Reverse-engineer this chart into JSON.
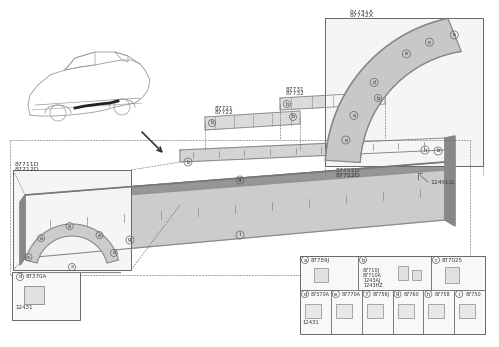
{
  "bg_color": "#ffffff",
  "line_color": "#666666",
  "text_color": "#333333",
  "gray1": "#aaaaaa",
  "gray2": "#888888",
  "gray3": "#cccccc",
  "part_labels_top": [
    "87741X",
    "87742X"
  ],
  "part_labels_mid": [
    "87751D",
    "87752D"
  ],
  "part_labels_left_box": [
    "87711D",
    "87712D"
  ],
  "part_label_small1": [
    "87721",
    "87722"
  ],
  "part_label_small2": [
    "87731",
    "87732"
  ],
  "main_part_label": "1249LG",
  "bottom_table_row1_a": "87759J",
  "bottom_table_row1_c": "877025",
  "sub_labels_b": [
    "87710J",
    "87710A",
    "1243AJ",
    "1243HZ"
  ],
  "sub_label_d_num": "12431",
  "row2_items": [
    [
      "d",
      "87370A"
    ],
    [
      "e",
      "87770A"
    ],
    [
      "f",
      "87756J"
    ],
    [
      "g",
      "87760"
    ],
    [
      "h",
      "87758"
    ],
    [
      "i",
      "87750"
    ]
  ]
}
